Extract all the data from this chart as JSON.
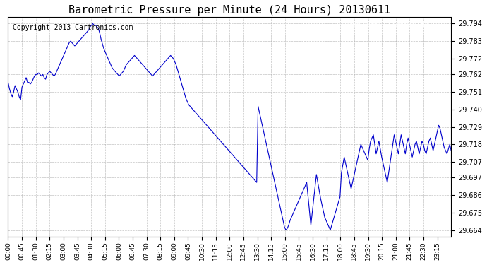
{
  "title": "Barometric Pressure per Minute (24 Hours) 20130611",
  "copyright": "Copyright 2013 Cartronics.com",
  "line_color": "#0000cc",
  "background_color": "#ffffff",
  "grid_color": "#aaaaaa",
  "yticks": [
    29.664,
    29.675,
    29.686,
    29.697,
    29.707,
    29.718,
    29.729,
    29.74,
    29.751,
    29.762,
    29.772,
    29.783,
    29.794
  ],
  "ylim": [
    29.66,
    29.798
  ],
  "xtick_labels": [
    "00:00",
    "00:45",
    "01:30",
    "02:15",
    "03:00",
    "03:45",
    "04:30",
    "05:15",
    "06:00",
    "06:45",
    "07:30",
    "08:15",
    "09:00",
    "09:45",
    "10:30",
    "11:15",
    "12:00",
    "12:45",
    "13:30",
    "14:15",
    "15:00",
    "15:45",
    "16:30",
    "17:15",
    "18:00",
    "18:45",
    "19:30",
    "20:15",
    "21:00",
    "21:45",
    "22:30",
    "23:15"
  ],
  "pressure_data": [
    29.757,
    29.753,
    29.75,
    29.748,
    29.751,
    29.755,
    29.753,
    29.751,
    29.748,
    29.746,
    29.754,
    29.756,
    29.758,
    29.76,
    29.757,
    29.757,
    29.756,
    29.757,
    29.759,
    29.761,
    29.762,
    29.762,
    29.763,
    29.762,
    29.761,
    29.762,
    29.76,
    29.759,
    29.762,
    29.763,
    29.764,
    29.763,
    29.762,
    29.761,
    29.762,
    29.764,
    29.766,
    29.768,
    29.77,
    29.772,
    29.774,
    29.776,
    29.778,
    29.78,
    29.782,
    29.783,
    29.782,
    29.781,
    29.78,
    29.781,
    29.782,
    29.783,
    29.784,
    29.785,
    29.786,
    29.787,
    29.788,
    29.789,
    29.79,
    29.792,
    29.793,
    29.794,
    29.793,
    29.793,
    29.792,
    29.791,
    29.788,
    29.784,
    29.781,
    29.778,
    29.776,
    29.774,
    29.772,
    29.77,
    29.768,
    29.766,
    29.765,
    29.764,
    29.763,
    29.762,
    29.761,
    29.762,
    29.763,
    29.764,
    29.766,
    29.768,
    29.769,
    29.77,
    29.771,
    29.772,
    29.773,
    29.774,
    29.773,
    29.772,
    29.771,
    29.77,
    29.769,
    29.768,
    29.767,
    29.766,
    29.765,
    29.764,
    29.763,
    29.762,
    29.761,
    29.762,
    29.763,
    29.764,
    29.765,
    29.766,
    29.767,
    29.768,
    29.769,
    29.77,
    29.771,
    29.772,
    29.773,
    29.774,
    29.773,
    29.772,
    29.77,
    29.768,
    29.765,
    29.762,
    29.759,
    29.756,
    29.753,
    29.75,
    29.747,
    29.745,
    29.743,
    29.742,
    29.741,
    29.74,
    29.739,
    29.738,
    29.737,
    29.736,
    29.735,
    29.734,
    29.733,
    29.732,
    29.731,
    29.73,
    29.729,
    29.728,
    29.727,
    29.726,
    29.725,
    29.724,
    29.723,
    29.722,
    29.721,
    29.72,
    29.719,
    29.718,
    29.717,
    29.716,
    29.715,
    29.714,
    29.713,
    29.712,
    29.711,
    29.71,
    29.709,
    29.708,
    29.707,
    29.706,
    29.705,
    29.704,
    29.703,
    29.702,
    29.701,
    29.7,
    29.699,
    29.698,
    29.697,
    29.696,
    29.695,
    29.694,
    29.742,
    29.738,
    29.734,
    29.73,
    29.726,
    29.722,
    29.718,
    29.714,
    29.71,
    29.706,
    29.702,
    29.698,
    29.694,
    29.69,
    29.686,
    29.682,
    29.678,
    29.674,
    29.67,
    29.666,
    29.664,
    29.665,
    29.667,
    29.67,
    29.672,
    29.674,
    29.676,
    29.678,
    29.68,
    29.682,
    29.684,
    29.686,
    29.688,
    29.69,
    29.692,
    29.694,
    29.685,
    29.676,
    29.667,
    29.675,
    29.683,
    29.691,
    29.699,
    29.694,
    29.689,
    29.684,
    29.68,
    29.676,
    29.672,
    29.67,
    29.668,
    29.666,
    29.664,
    29.667,
    29.67,
    29.673,
    29.676,
    29.679,
    29.682,
    29.685,
    29.7,
    29.705,
    29.71,
    29.706,
    29.702,
    29.698,
    29.694,
    29.69,
    29.694,
    29.698,
    29.702,
    29.706,
    29.71,
    29.714,
    29.718,
    29.716,
    29.714,
    29.712,
    29.71,
    29.708,
    29.715,
    29.72,
    29.722,
    29.724,
    29.718,
    29.712,
    29.716,
    29.72,
    29.715,
    29.71,
    29.706,
    29.702,
    29.698,
    29.694,
    29.7,
    29.706,
    29.712,
    29.718,
    29.724,
    29.72,
    29.716,
    29.712,
    29.718,
    29.724,
    29.72,
    29.716,
    29.712,
    29.718,
    29.722,
    29.718,
    29.714,
    29.71,
    29.714,
    29.718,
    29.72,
    29.716,
    29.712,
    29.716,
    29.72,
    29.718,
    29.714,
    29.712,
    29.716,
    29.72,
    29.722,
    29.718,
    29.714,
    29.718,
    29.722,
    29.726,
    29.73,
    29.728,
    29.724,
    29.72,
    29.716,
    29.714,
    29.712,
    29.715,
    29.718,
    29.714
  ]
}
